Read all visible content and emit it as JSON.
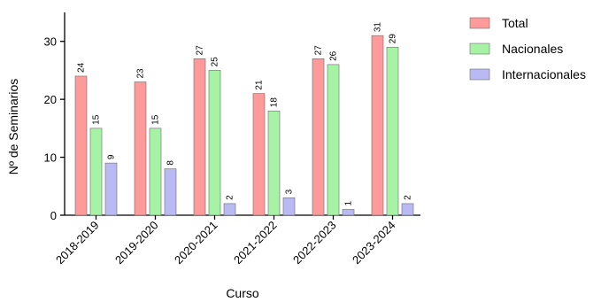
{
  "chart_data": {
    "type": "bar",
    "title": "",
    "xlabel": "Curso",
    "ylabel": "Nº de Seminarios",
    "categories": [
      "2018-2019",
      "2019-2020",
      "2020-2021",
      "2021-2022",
      "2022-2023",
      "2023-2024"
    ],
    "series": [
      {
        "name": "Total",
        "values": [
          24,
          23,
          27,
          21,
          27,
          31
        ],
        "color": "#ff9a9a"
      },
      {
        "name": "Nacionales",
        "values": [
          15,
          15,
          25,
          18,
          26,
          29
        ],
        "color": "#a6f3a6"
      },
      {
        "name": "Internacionales",
        "values": [
          9,
          8,
          2,
          3,
          1,
          2
        ],
        "color": "#b9b9f4"
      }
    ],
    "ylim": [
      0,
      35
    ],
    "yticks": [
      0,
      10,
      20,
      30
    ],
    "grid": false,
    "legend_position": "top-right",
    "data_labels": true
  }
}
